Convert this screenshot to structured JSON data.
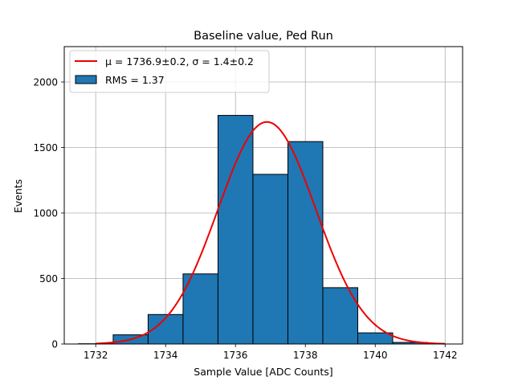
{
  "chart_data": {
    "type": "bar",
    "title": "Baseline value, Ped Run",
    "xlabel": "Sample Value [ADC Counts]",
    "ylabel": "Events",
    "xlim": [
      1731.1,
      1742.5
    ],
    "ylim": [
      0,
      2270
    ],
    "grid": true,
    "legend_position": "top-left",
    "x_ticks": [
      1732,
      1734,
      1736,
      1738,
      1740,
      1742
    ],
    "y_ticks": [
      0,
      500,
      1000,
      1500,
      2000
    ],
    "histogram": {
      "name": "RMS = 1.37",
      "color": "#1f77b4",
      "edge_color": "#000000",
      "bins": [
        {
          "start": 1731.5,
          "end": 1732.5,
          "value": 2
        },
        {
          "start": 1732.5,
          "end": 1733.5,
          "value": 70
        },
        {
          "start": 1733.5,
          "end": 1734.5,
          "value": 225
        },
        {
          "start": 1734.5,
          "end": 1735.5,
          "value": 535
        },
        {
          "start": 1735.5,
          "end": 1736.5,
          "value": 1745
        },
        {
          "start": 1736.5,
          "end": 1737.5,
          "value": 1295
        },
        {
          "start": 1737.5,
          "end": 1738.5,
          "value": 1545
        },
        {
          "start": 1738.5,
          "end": 1739.5,
          "value": 430
        },
        {
          "start": 1739.5,
          "end": 1740.5,
          "value": 85
        },
        {
          "start": 1740.5,
          "end": 1741.5,
          "value": 12
        }
      ]
    },
    "fit": {
      "name": "μ = 1736.9±0.2, σ = 1.4±0.2",
      "color": "#ee0000",
      "function": "gaussian",
      "mu": 1736.9,
      "sigma": 1.4,
      "amplitude": 1695,
      "x_range": [
        1732,
        1742
      ]
    }
  }
}
